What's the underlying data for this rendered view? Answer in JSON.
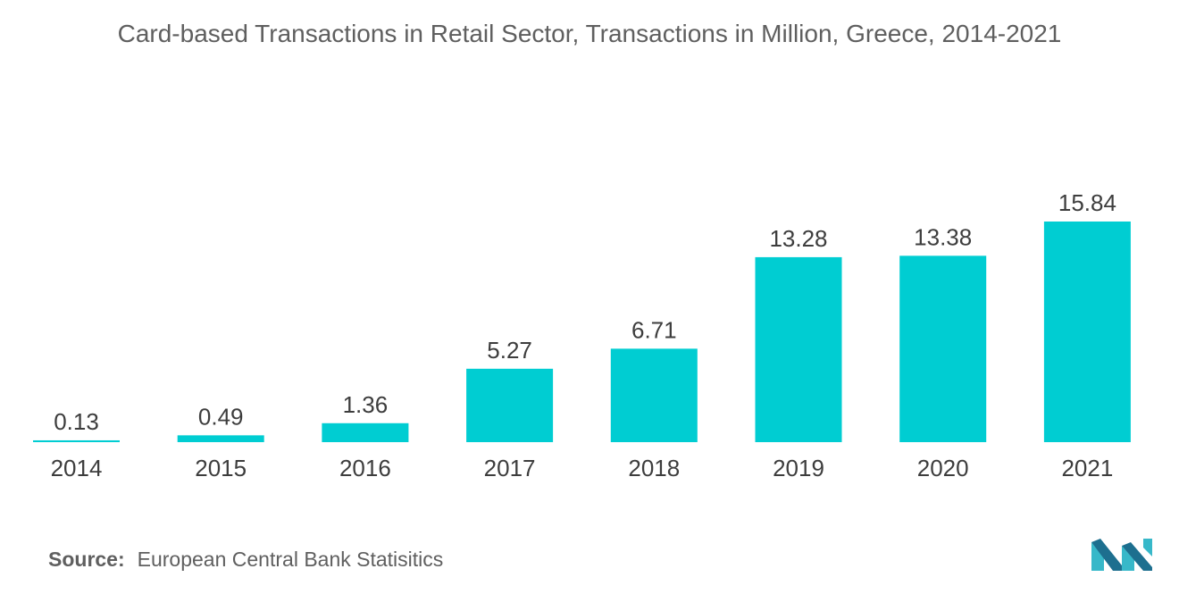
{
  "chart_data": {
    "type": "bar",
    "title": "Card-based Transactions in Retail Sector, Transactions in Million, Greece, 2014-2021",
    "categories": [
      "2014",
      "2015",
      "2016",
      "2017",
      "2018",
      "2019",
      "2020",
      "2021"
    ],
    "values": [
      0.13,
      0.49,
      1.36,
      5.27,
      6.71,
      13.28,
      13.38,
      15.84
    ],
    "data_labels": [
      "0.13",
      "0.49",
      "1.36",
      "5.27",
      "6.71",
      "13.28",
      "13.38",
      "15.84"
    ],
    "xlabel": "",
    "ylabel": "",
    "grid": false,
    "legend": "none",
    "bar_color": "#00CDD2"
  },
  "source": {
    "label": "Source:",
    "text": "European Central Bank Statisitics"
  },
  "logo": {
    "icon": "mordor-intelligence-logo-icon",
    "color_dark": "#1d6f8f",
    "color_light": "#37b8c9"
  }
}
